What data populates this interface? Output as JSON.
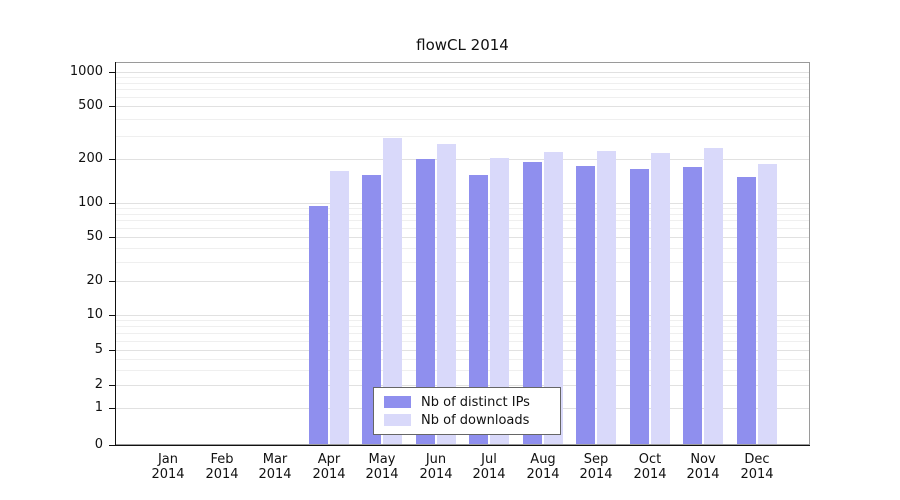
{
  "chart_data": {
    "type": "bar",
    "title": "flowCL 2014",
    "categories": [
      "Jan",
      "Feb",
      "Mar",
      "Apr",
      "May",
      "Jun",
      "Jul",
      "Aug",
      "Sep",
      "Oct",
      "Nov",
      "Dec"
    ],
    "category_year": "2014",
    "series": [
      {
        "name": "Nb of distinct IPs",
        "color": "#8f8fee",
        "values": [
          0,
          0,
          0,
          95,
          155,
          200,
          155,
          190,
          180,
          170,
          175,
          150
        ]
      },
      {
        "name": "Nb of downloads",
        "color": "#d9d9fa",
        "values": [
          0,
          0,
          0,
          165,
          290,
          260,
          205,
          225,
          230,
          220,
          240,
          185
        ]
      }
    ],
    "y_ticks": [
      0,
      1,
      2,
      5,
      10,
      20,
      50,
      100,
      200,
      500,
      1000
    ],
    "y_scale": "log-like",
    "ylim": [
      0,
      1000
    ],
    "xlabel": "",
    "ylabel": "",
    "grid": true,
    "legend": {
      "position": "bottom-center-inside",
      "items": [
        "Nb of distinct IPs",
        "Nb of downloads"
      ]
    }
  }
}
